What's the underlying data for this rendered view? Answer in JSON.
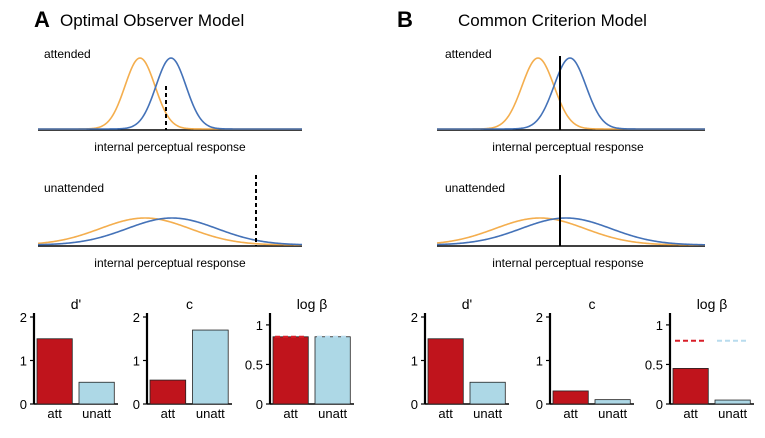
{
  "colors": {
    "orange": "#F4AE4E",
    "blue": "#4472B8",
    "red": "#C0141C",
    "light_blue": "#ADD8E6",
    "dashed_red": "#D81E28",
    "dashed_light_blue": "#B8DCEE"
  },
  "panels": [
    {
      "letter": "A",
      "title": "Optimal Observer Model",
      "attended_label": "attended",
      "unattended_label": "unattended",
      "xlabel_attended": "internal perceptual response",
      "xlabel_unattended": "internal perceptual response",
      "criterion_style": "dashed"
    },
    {
      "letter": "B",
      "title": "Common Criterion Model",
      "attended_label": "attended",
      "unattended_label": "unattended",
      "xlabel_attended": "internal perceptual response",
      "xlabel_unattended": "internal perceptual response",
      "criterion_style": "solid"
    }
  ],
  "chart_data": [
    {
      "panel": "A",
      "type": "bar",
      "title": "d'",
      "categories": [
        "att",
        "unatt"
      ],
      "values": [
        1.5,
        0.5
      ],
      "ylim": [
        0,
        2
      ],
      "yticks": [
        "0",
        "1",
        "2"
      ]
    },
    {
      "panel": "A",
      "type": "bar",
      "title": "c",
      "categories": [
        "att",
        "unatt"
      ],
      "values": [
        0.55,
        1.7
      ],
      "ylim": [
        0,
        2
      ],
      "yticks": [
        "0",
        "1",
        "2"
      ]
    },
    {
      "panel": "A",
      "type": "bar",
      "title": "log β",
      "categories": [
        "att",
        "unatt"
      ],
      "values": [
        0.85,
        0.85
      ],
      "reference_lines": [
        0.85,
        0.85
      ],
      "ylim": [
        0,
        1.1
      ],
      "yticks": [
        "0",
        "0.5",
        "1"
      ]
    },
    {
      "panel": "B",
      "type": "bar",
      "title": "d'",
      "categories": [
        "att",
        "unatt"
      ],
      "values": [
        1.5,
        0.5
      ],
      "ylim": [
        0,
        2
      ],
      "yticks": [
        "0",
        "1",
        "2"
      ]
    },
    {
      "panel": "B",
      "type": "bar",
      "title": "c",
      "categories": [
        "att",
        "unatt"
      ],
      "values": [
        0.3,
        0.1
      ],
      "ylim": [
        0,
        2
      ],
      "yticks": [
        "0",
        "1",
        "2"
      ]
    },
    {
      "panel": "B",
      "type": "bar",
      "title": "log β",
      "categories": [
        "att",
        "unatt"
      ],
      "values": [
        0.45,
        0.05
      ],
      "reference_lines": [
        0.8,
        0.8
      ],
      "ylim": [
        0,
        1.1
      ],
      "yticks": [
        "0",
        "0.5",
        "1"
      ]
    }
  ]
}
